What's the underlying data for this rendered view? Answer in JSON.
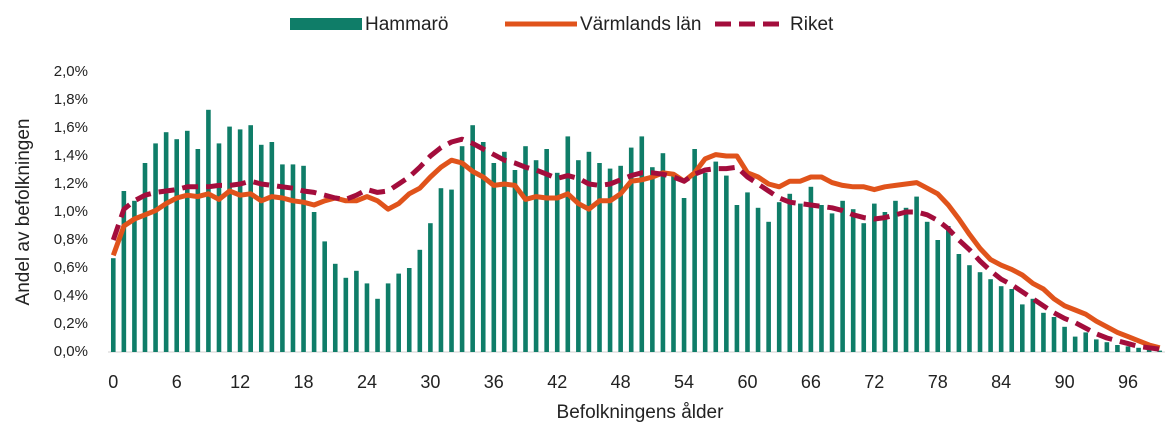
{
  "chart_data": {
    "type": "bar",
    "x_label": "Befolkningens ålder",
    "y_label": "Andel av befolkningen",
    "categories": [
      0,
      null,
      null,
      null,
      null,
      null,
      6,
      null,
      null,
      null,
      null,
      null,
      12,
      null,
      null,
      null,
      null,
      null,
      18,
      null,
      null,
      null,
      null,
      null,
      24,
      null,
      null,
      null,
      null,
      null,
      30,
      null,
      null,
      null,
      null,
      null,
      36,
      null,
      null,
      null,
      null,
      null,
      42,
      null,
      null,
      null,
      null,
      null,
      48,
      null,
      null,
      null,
      null,
      null,
      54,
      null,
      null,
      null,
      null,
      null,
      60,
      null,
      null,
      null,
      null,
      null,
      66,
      null,
      null,
      null,
      null,
      null,
      72,
      null,
      null,
      null,
      null,
      null,
      78,
      null,
      null,
      null,
      null,
      null,
      84,
      null,
      null,
      null,
      null,
      null,
      90,
      null,
      null,
      null,
      null,
      null,
      96,
      null,
      null,
      null
    ],
    "series": [
      {
        "name": "Hammarö",
        "type": "bar",
        "color": "#0f7d68",
        "values": [
          0.67,
          1.15,
          1.08,
          1.35,
          1.49,
          1.57,
          1.52,
          1.58,
          1.45,
          1.73,
          1.49,
          1.61,
          1.59,
          1.62,
          1.48,
          1.5,
          1.34,
          1.34,
          1.33,
          1.0,
          0.79,
          0.63,
          0.53,
          0.58,
          0.49,
          0.38,
          0.49,
          0.56,
          0.6,
          0.73,
          0.92,
          1.17,
          1.16,
          1.47,
          1.62,
          1.5,
          1.35,
          1.43,
          1.3,
          1.47,
          1.37,
          1.45,
          1.28,
          1.54,
          1.37,
          1.43,
          1.35,
          1.31,
          1.33,
          1.46,
          1.54,
          1.32,
          1.42,
          1.27,
          1.1,
          1.45,
          1.28,
          1.36,
          1.26,
          1.05,
          1.14,
          1.03,
          0.93,
          1.07,
          1.13,
          1.06,
          1.18,
          1.05,
          0.99,
          1.08,
          1.02,
          0.92,
          1.06,
          1.0,
          1.08,
          1.03,
          1.11,
          0.93,
          0.8,
          0.9,
          0.7,
          0.62,
          0.57,
          0.52,
          0.47,
          0.45,
          0.34,
          0.38,
          0.28,
          0.25,
          0.18,
          0.11,
          0.14,
          0.09,
          0.07,
          0.05,
          0.04,
          0.03,
          0.02,
          0.01
        ]
      },
      {
        "name": "Värmlands län",
        "type": "line",
        "color": "#e0531b",
        "values": [
          0.69,
          0.9,
          0.95,
          0.98,
          1.01,
          1.06,
          1.1,
          1.12,
          1.11,
          1.13,
          1.09,
          1.15,
          1.12,
          1.13,
          1.08,
          1.11,
          1.1,
          1.08,
          1.07,
          1.05,
          1.08,
          1.1,
          1.08,
          1.08,
          1.11,
          1.08,
          1.02,
          1.06,
          1.13,
          1.17,
          1.25,
          1.32,
          1.37,
          1.35,
          1.29,
          1.25,
          1.19,
          1.2,
          1.19,
          1.09,
          1.11,
          1.1,
          1.1,
          1.13,
          1.06,
          1.02,
          1.08,
          1.08,
          1.13,
          1.22,
          1.23,
          1.25,
          1.28,
          1.27,
          1.22,
          1.28,
          1.38,
          1.41,
          1.4,
          1.4,
          1.28,
          1.25,
          1.2,
          1.18,
          1.22,
          1.22,
          1.25,
          1.25,
          1.21,
          1.19,
          1.18,
          1.18,
          1.16,
          1.18,
          1.19,
          1.2,
          1.21,
          1.17,
          1.13,
          1.05,
          0.95,
          0.84,
          0.74,
          0.66,
          0.62,
          0.59,
          0.55,
          0.49,
          0.45,
          0.38,
          0.33,
          0.3,
          0.27,
          0.22,
          0.18,
          0.14,
          0.11,
          0.08,
          0.05,
          0.03
        ]
      },
      {
        "name": "Riket",
        "type": "line",
        "dashed": true,
        "color": "#a30d3c",
        "values": [
          0.8,
          1.02,
          1.08,
          1.12,
          1.14,
          1.15,
          1.16,
          1.18,
          1.18,
          1.18,
          1.19,
          1.19,
          1.2,
          1.22,
          1.2,
          1.19,
          1.18,
          1.17,
          1.15,
          1.14,
          1.12,
          1.1,
          1.09,
          1.12,
          1.16,
          1.14,
          1.15,
          1.2,
          1.25,
          1.32,
          1.4,
          1.46,
          1.5,
          1.52,
          1.49,
          1.45,
          1.41,
          1.37,
          1.35,
          1.32,
          1.3,
          1.27,
          1.24,
          1.26,
          1.24,
          1.2,
          1.19,
          1.2,
          1.23,
          1.26,
          1.28,
          1.28,
          1.27,
          1.25,
          1.22,
          1.27,
          1.3,
          1.31,
          1.31,
          1.32,
          1.25,
          1.2,
          1.15,
          1.1,
          1.07,
          1.06,
          1.05,
          1.04,
          1.03,
          1.01,
          0.98,
          0.96,
          0.95,
          0.96,
          0.98,
          1.0,
          1.0,
          0.98,
          0.94,
          0.88,
          0.8,
          0.73,
          0.65,
          0.58,
          0.52,
          0.48,
          0.43,
          0.38,
          0.33,
          0.28,
          0.24,
          0.21,
          0.17,
          0.13,
          0.1,
          0.08,
          0.06,
          0.04,
          0.03,
          0.02
        ]
      }
    ],
    "ylim": [
      0,
      2.0
    ],
    "yticks": [
      {
        "value": 0,
        "label": "0,0%"
      },
      {
        "value": 0.2,
        "label": "0,2%"
      },
      {
        "value": 0.4,
        "label": "0,4%"
      },
      {
        "value": 0.6,
        "label": "0,6%"
      },
      {
        "value": 0.8,
        "label": "0,8%"
      },
      {
        "value": 1.0,
        "label": "1,0%"
      },
      {
        "value": 1.2,
        "label": "1,2%"
      },
      {
        "value": 1.4,
        "label": "1,4%"
      },
      {
        "value": 1.6,
        "label": "1,6%"
      },
      {
        "value": 1.8,
        "label": "1,8%"
      },
      {
        "value": 2.0,
        "label": "2,0%"
      }
    ],
    "grid": false,
    "legend": "top"
  }
}
